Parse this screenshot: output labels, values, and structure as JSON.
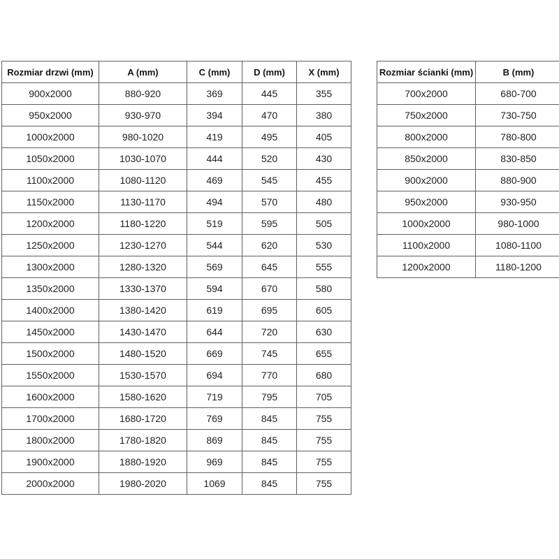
{
  "colors": {
    "border": "#5f5f5f",
    "text": "#1f1f1f",
    "header_text": "#141414",
    "background": "#ffffff"
  },
  "tables": [
    {
      "name": "door-size-table",
      "headers": [
        "Rozmiar drzwi (mm)",
        "A (mm)",
        "C (mm)",
        "D (mm)",
        "X (mm)"
      ],
      "rows": [
        [
          "900x2000",
          "880-920",
          "369",
          "445",
          "355"
        ],
        [
          "950x2000",
          "930-970",
          "394",
          "470",
          "380"
        ],
        [
          "1000x2000",
          "980-1020",
          "419",
          "495",
          "405"
        ],
        [
          "1050x2000",
          "1030-1070",
          "444",
          "520",
          "430"
        ],
        [
          "1100x2000",
          "1080-1120",
          "469",
          "545",
          "455"
        ],
        [
          "1150x2000",
          "1130-1170",
          "494",
          "570",
          "480"
        ],
        [
          "1200x2000",
          "1180-1220",
          "519",
          "595",
          "505"
        ],
        [
          "1250x2000",
          "1230-1270",
          "544",
          "620",
          "530"
        ],
        [
          "1300x2000",
          "1280-1320",
          "569",
          "645",
          "555"
        ],
        [
          "1350x2000",
          "1330-1370",
          "594",
          "670",
          "580"
        ],
        [
          "1400x2000",
          "1380-1420",
          "619",
          "695",
          "605"
        ],
        [
          "1450x2000",
          "1430-1470",
          "644",
          "720",
          "630"
        ],
        [
          "1500x2000",
          "1480-1520",
          "669",
          "745",
          "655"
        ],
        [
          "1550x2000",
          "1530-1570",
          "694",
          "770",
          "680"
        ],
        [
          "1600x2000",
          "1580-1620",
          "719",
          "795",
          "705"
        ],
        [
          "1700x2000",
          "1680-1720",
          "769",
          "845",
          "755"
        ],
        [
          "1800x2000",
          "1780-1820",
          "869",
          "845",
          "755"
        ],
        [
          "1900x2000",
          "1880-1920",
          "969",
          "845",
          "755"
        ],
        [
          "2000x2000",
          "1980-2020",
          "1069",
          "845",
          "755"
        ]
      ]
    },
    {
      "name": "wall-size-table",
      "headers": [
        "Rozmiar ścianki (mm)",
        "B (mm)"
      ],
      "rows": [
        [
          "700x2000",
          "680-700"
        ],
        [
          "750x2000",
          "730-750"
        ],
        [
          "800x2000",
          "780-800"
        ],
        [
          "850x2000",
          "830-850"
        ],
        [
          "900x2000",
          "880-900"
        ],
        [
          "950x2000",
          "930-950"
        ],
        [
          "1000x2000",
          "980-1000"
        ],
        [
          "1100x2000",
          "1080-1100"
        ],
        [
          "1200x2000",
          "1180-1200"
        ]
      ]
    }
  ]
}
